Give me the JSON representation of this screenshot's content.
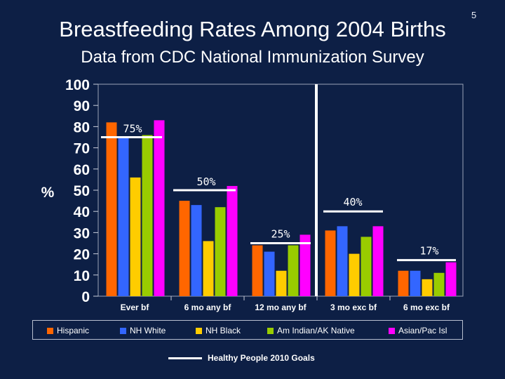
{
  "slide_number": "5",
  "title": "Breastfeeding Rates Among 2004 Births",
  "subtitle": "Data from CDC National Immunization Survey",
  "legend_key_label": "Healthy People 2010 Goals",
  "chart_data": {
    "type": "bar",
    "ylabel": "%",
    "ylim": [
      0,
      100
    ],
    "yticks": [
      "0",
      "10",
      "20",
      "30",
      "40",
      "50",
      "60",
      "70",
      "80",
      "90",
      "100"
    ],
    "categories": [
      "Ever bf",
      "6 mo any bf",
      "12 mo any bf",
      "3 mo exc bf",
      "6 mo exc bf"
    ],
    "series": [
      {
        "name": "Hispanic",
        "color": "#ff6600",
        "values": [
          82,
          45,
          24,
          31,
          12
        ]
      },
      {
        "name": "NH White",
        "color": "#3366ff",
        "values": [
          75,
          43,
          21,
          33,
          12
        ]
      },
      {
        "name": "NH Black",
        "color": "#ffcc00",
        "values": [
          56,
          26,
          12,
          20,
          8
        ]
      },
      {
        "name": "Am Indian/AK Native",
        "color": "#99cc00",
        "values": [
          76,
          42,
          24,
          28,
          11
        ]
      },
      {
        "name": "Asian/Pac Isl",
        "color": "#ff00ff",
        "values": [
          83,
          52,
          29,
          33,
          16
        ]
      }
    ],
    "goals": [
      {
        "category": "Ever bf",
        "value": 75,
        "label": "75%"
      },
      {
        "category": "6 mo any bf",
        "value": 50,
        "label": "50%"
      },
      {
        "category": "12 mo any bf",
        "value": 25,
        "label": "25%"
      },
      {
        "category": "3 mo exc bf",
        "value": 40,
        "label": "40%"
      },
      {
        "category": "6 mo exc bf",
        "value": 17,
        "label": "17%"
      }
    ],
    "divider_after_category": "12 mo any bf",
    "grid": false,
    "legend": "bottom"
  }
}
